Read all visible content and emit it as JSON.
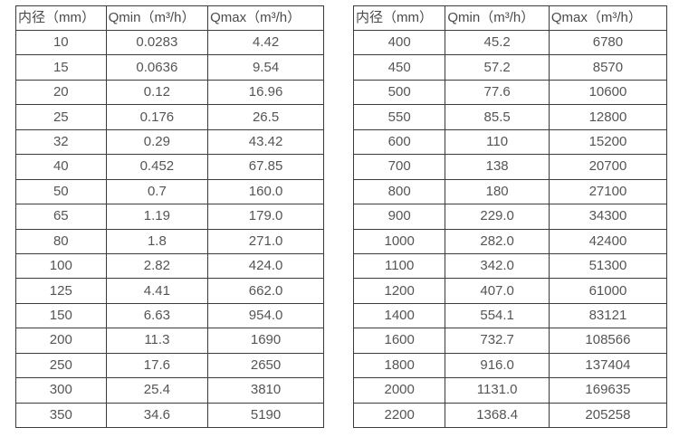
{
  "colors": {
    "background": "#ffffff",
    "border": "#3b3b3b",
    "header_text": "#4a4a4a",
    "cell_text": "#555555"
  },
  "tables": [
    {
      "name": "diameter-flow-table-left",
      "headers": [
        "内径（mm）",
        "Qmin（m³/h）",
        "Qmax（m³/h）"
      ],
      "rows": [
        [
          "10",
          "0.0283",
          "4.42"
        ],
        [
          "15",
          "0.0636",
          "9.54"
        ],
        [
          "20",
          "0.12",
          "16.96"
        ],
        [
          "25",
          "0.176",
          "26.5"
        ],
        [
          "32",
          "0.29",
          "43.42"
        ],
        [
          "40",
          "0.452",
          "67.85"
        ],
        [
          "50",
          "0.7",
          "160.0"
        ],
        [
          "65",
          "1.19",
          "179.0"
        ],
        [
          "80",
          "1.8",
          "271.0"
        ],
        [
          "100",
          "2.82",
          "424.0"
        ],
        [
          "125",
          "4.41",
          "662.0"
        ],
        [
          "150",
          "6.63",
          "954.0"
        ],
        [
          "200",
          "11.3",
          "1690"
        ],
        [
          "250",
          "17.6",
          "2650"
        ],
        [
          "300",
          "25.4",
          "3810"
        ],
        [
          "350",
          "34.6",
          "5190"
        ]
      ]
    },
    {
      "name": "diameter-flow-table-right",
      "headers": [
        "内径（mm）",
        "Qmin（m³/h）",
        "Qmax（m³/h）"
      ],
      "rows": [
        [
          "400",
          "45.2",
          "6780"
        ],
        [
          "450",
          "57.2",
          "8570"
        ],
        [
          "500",
          "77.6",
          "10600"
        ],
        [
          "550",
          "85.5",
          "12800"
        ],
        [
          "600",
          "110",
          "15200"
        ],
        [
          "700",
          "138",
          "20700"
        ],
        [
          "800",
          "180",
          "27100"
        ],
        [
          "900",
          "229.0",
          "34300"
        ],
        [
          "1000",
          "282.0",
          "42400"
        ],
        [
          "1100",
          "342.0",
          "51300"
        ],
        [
          "1200",
          "407.0",
          "61000"
        ],
        [
          "1400",
          "554.1",
          "83121"
        ],
        [
          "1600",
          "732.7",
          "108566"
        ],
        [
          "1800",
          "916.0",
          "137404"
        ],
        [
          "2000",
          "1131.0",
          "169635"
        ],
        [
          "2200",
          "1368.4",
          "205258"
        ]
      ]
    }
  ]
}
